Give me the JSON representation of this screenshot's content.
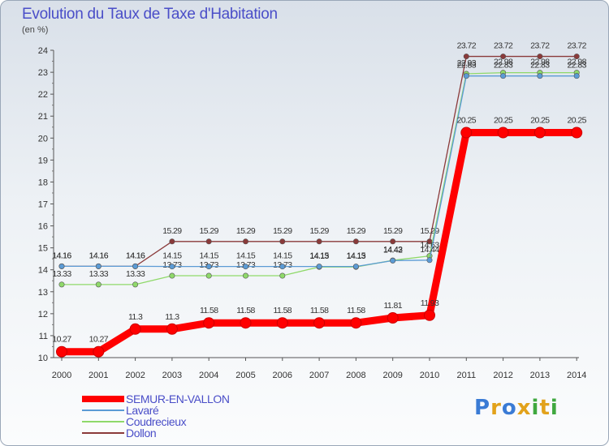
{
  "header": {
    "title": "Evolution du Taux de Taxe d'Habitation",
    "subtitle": "(en %)"
  },
  "brand": {
    "letters": [
      "P",
      "r",
      "o",
      "x",
      "i",
      "t",
      "i"
    ],
    "colors": [
      "#3a7bd5",
      "#e2a21b",
      "#3a7bd5",
      "#e2a21b",
      "#3fa83f",
      "#e2a21b",
      "#3fa83f"
    ]
  },
  "chart_data": {
    "type": "line",
    "x": [
      "2000",
      "2001",
      "2002",
      "2003",
      "2004",
      "2005",
      "2006",
      "2007",
      "2008",
      "2009",
      "2010",
      "2011",
      "2012",
      "2013",
      "2014"
    ],
    "ylim": [
      10,
      24
    ],
    "yticks": [
      "10",
      "11",
      "12",
      "13",
      "14",
      "15",
      "16",
      "17",
      "18",
      "19",
      "20",
      "21",
      "22",
      "23",
      "24"
    ],
    "grid": false,
    "legend_position": "bottom-left",
    "series": [
      {
        "name": "SEMUR-EN-VALLON",
        "color": "#ff0000",
        "values": [
          10.27,
          10.27,
          11.3,
          11.3,
          11.58,
          11.58,
          11.58,
          11.58,
          11.58,
          11.81,
          11.93,
          20.25,
          20.25,
          20.25,
          20.25
        ],
        "labels": [
          "10.27",
          "10.27",
          "11.3",
          "11.3",
          "11.58",
          "11.58",
          "11.58",
          "11.58",
          "11.58",
          "11.81",
          "11.93",
          "20.25",
          "20.25",
          "20.25",
          "20.25"
        ]
      },
      {
        "name": "Lavaré",
        "color": "#5b9bd5",
        "values": [
          14.16,
          14.16,
          14.16,
          14.15,
          14.15,
          14.15,
          14.15,
          14.15,
          14.15,
          14.42,
          14.44,
          22.83,
          22.83,
          22.83,
          22.83
        ],
        "labels": [
          "14.16",
          "14.16",
          "14.16",
          "14.15",
          "14.15",
          "14.15",
          "14.15",
          "14.15",
          "14.15",
          "14.42",
          "14.44",
          "22.83",
          "22.83",
          "22.83",
          "22.83"
        ]
      },
      {
        "name": "Coudrecieux",
        "color": "#8fd96a",
        "values": [
          13.33,
          13.33,
          13.33,
          13.73,
          13.73,
          13.73,
          13.73,
          14.13,
          14.13,
          14.43,
          14.63,
          22.93,
          22.98,
          22.98,
          22.98
        ],
        "labels": [
          "13.33",
          "13.33",
          "13.33",
          "13.73",
          "13.73",
          "13.73",
          "13.73",
          "14.13",
          "14.13",
          "14.43",
          "14.63",
          "22.93",
          "22.98",
          "22.98",
          "22.98"
        ]
      },
      {
        "name": "Dollon",
        "color": "#8a3a3a",
        "values": [
          14.16,
          14.16,
          14.16,
          15.29,
          15.29,
          15.29,
          15.29,
          15.29,
          15.29,
          15.29,
          15.29,
          23.72,
          23.72,
          23.72,
          23.72
        ],
        "labels": [
          "14.16",
          "14.16",
          "14.16",
          "15.29",
          "15.29",
          "15.29",
          "15.29",
          "15.29",
          "15.29",
          "15.29",
          "15.29",
          "23.72",
          "23.72",
          "23.72",
          "23.72"
        ]
      }
    ]
  }
}
